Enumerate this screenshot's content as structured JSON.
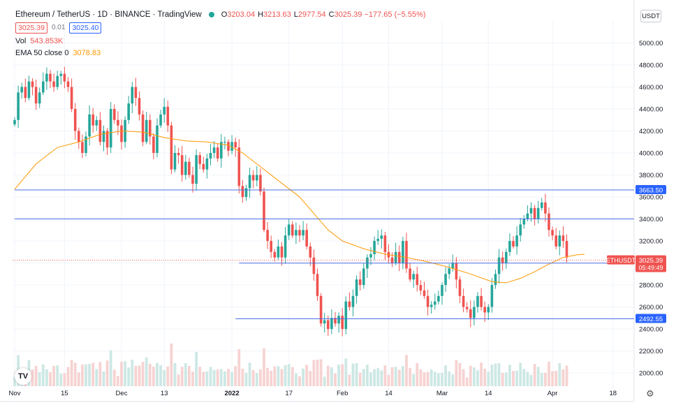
{
  "header": {
    "title": "Ethereum / TetherUS · 1D · BINANCE · TradingView",
    "ohlc": [
      {
        "k": "O",
        "v": "3203.04"
      },
      {
        "k": "H",
        "v": "3213.63"
      },
      {
        "k": "L",
        "v": "2977.54"
      },
      {
        "k": "C",
        "v": "3025.39 −177.65 (−5.55%)"
      }
    ],
    "sell_price": "3025.39",
    "spread": "0.01",
    "buy_price": "3025.40",
    "vol_label": "Vol",
    "vol_value": "543.853K",
    "ema_label": "EMA 50 close 0",
    "ema_value": "3078.83",
    "currency": "USDT",
    "logo_text": "TV",
    "settings_icon": "gear-icon"
  },
  "colors": {
    "up": "#26a69a",
    "down": "#ef5350",
    "ema": "#ff9800",
    "hline": "#4a6fe3",
    "vol_up": "#cde8e4",
    "vol_down": "#f6d3d2",
    "grid": "#f0f3fa",
    "axis_text": "#131722"
  },
  "chart_data": {
    "type": "candlestick",
    "symbol": "ETHUSDT",
    "ylim": [
      1880,
      5200
    ],
    "y_ticks": [
      2000,
      2200,
      2400,
      2600,
      2800,
      3000,
      3200,
      3400,
      3600,
      3800,
      4000,
      4200,
      4400,
      4600,
      4800,
      5000
    ],
    "x_ticks": [
      {
        "label": "Nov",
        "d": 0
      },
      {
        "label": "15",
        "d": 14
      },
      {
        "label": "Dec",
        "d": 30
      },
      {
        "label": "13",
        "d": 42
      },
      {
        "label": "2022",
        "d": 61
      },
      {
        "label": "17",
        "d": 77
      },
      {
        "label": "Feb",
        "d": 92
      },
      {
        "label": "14",
        "d": 105
      },
      {
        "label": "Mar",
        "d": 120
      },
      {
        "label": "14",
        "d": 133
      },
      {
        "label": "Apr",
        "d": 151
      },
      {
        "label": "18",
        "d": 168
      }
    ],
    "closes": [
      4300,
      4550,
      4600,
      4500,
      4650,
      4600,
      4450,
      4550,
      4650,
      4720,
      4650,
      4600,
      4700,
      4720,
      4650,
      4600,
      4400,
      4200,
      4100,
      4000,
      4150,
      4350,
      4250,
      4300,
      4100,
      4200,
      4050,
      4400,
      4300,
      4250,
      4100,
      4300,
      4450,
      4600,
      4500,
      4350,
      4100,
      4300,
      4150,
      4000,
      4250,
      4350,
      4420,
      4250,
      3850,
      4000,
      3980,
      3800,
      3920,
      3800,
      3720,
      3980,
      3900,
      3850,
      3950,
      4000,
      4050,
      3950,
      4100,
      4100,
      4020,
      4100,
      4050,
      3700,
      3600,
      3680,
      3800,
      3750,
      3800,
      3650,
      3300,
      3200,
      3100,
      3050,
      3150,
      3050,
      3250,
      3350,
      3250,
      3300,
      3250,
      3300,
      3150,
      3050,
      2900,
      2700,
      2450,
      2480,
      2400,
      2500,
      2450,
      2520,
      2400,
      2650,
      2600,
      2700,
      2850,
      2800,
      2950,
      3050,
      3080,
      3200,
      3220,
      3250,
      3100,
      3050,
      3000,
      3100,
      3000,
      3200,
      2950,
      2850,
      2900,
      2800,
      2750,
      2700,
      2600,
      2620,
      2650,
      2700,
      2800,
      2900,
      2950,
      3000,
      2850,
      2700,
      2600,
      2580,
      2500,
      2600,
      2700,
      2600,
      2550,
      2600,
      2800,
      2900,
      3050,
      3000,
      3100,
      3200,
      3150,
      3250,
      3350,
      3400,
      3450,
      3500,
      3400,
      3500,
      3550,
      3450,
      3300,
      3250,
      3150,
      3250,
      3200,
      3050
    ],
    "last_close": 3025.39,
    "ema50_path": [
      [
        0,
        3670
      ],
      [
        6,
        3900
      ],
      [
        12,
        4050
      ],
      [
        18,
        4100
      ],
      [
        24,
        4170
      ],
      [
        30,
        4200
      ],
      [
        36,
        4190
      ],
      [
        42,
        4140
      ],
      [
        48,
        4110
      ],
      [
        54,
        4100
      ],
      [
        60,
        4070
      ],
      [
        64,
        4000
      ],
      [
        68,
        3900
      ],
      [
        72,
        3800
      ],
      [
        76,
        3700
      ],
      [
        80,
        3600
      ],
      [
        84,
        3450
      ],
      [
        88,
        3300
      ],
      [
        92,
        3200
      ],
      [
        98,
        3130
      ],
      [
        104,
        3080
      ],
      [
        110,
        3050
      ],
      [
        116,
        3010
      ],
      [
        122,
        2960
      ],
      [
        128,
        2900
      ],
      [
        134,
        2830
      ],
      [
        138,
        2820
      ],
      [
        142,
        2860
      ],
      [
        146,
        2920
      ],
      [
        150,
        2990
      ],
      [
        154,
        3050
      ],
      [
        158,
        3075
      ],
      [
        160,
        3078.83
      ]
    ],
    "hlines": [
      {
        "value": 3663.5,
        "label": "3663.50",
        "from_day": 0
      },
      {
        "value": 3400,
        "label": "",
        "from_day": 0
      },
      {
        "value": 2998.49,
        "label": "2998.49",
        "from_day": 63
      },
      {
        "value": 2492.55,
        "label": "2492.55",
        "from_day": 62
      }
    ],
    "price_tag": {
      "symbol": "ETHUSDT",
      "price": "3025.39",
      "countdown": "05:49:49"
    },
    "volume_note": "relative volume bars at bottom"
  }
}
